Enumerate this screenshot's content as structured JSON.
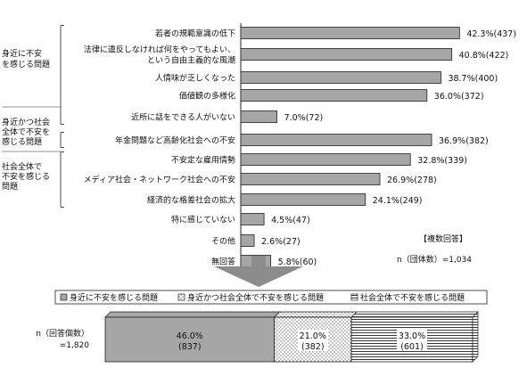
{
  "chart_data": [
    {
      "type": "bar",
      "orientation": "horizontal",
      "categories": [
        "若者の規範意識の低下",
        "法律に違反しなければ何をやってもよい、という自由主義的な風潮",
        "人情味が乏しくなった",
        "価値観の多様化",
        "近所に話をできる人がいない",
        "年金問題など高齢化社会への不安",
        "不安定な雇用情勢",
        "メディア社会・ネットワーク社会への不安",
        "経済的な格差社会の拡大",
        "特に感じていない",
        "その他",
        "無回答"
      ],
      "category_lines": [
        [
          "若者の規範意識の低下"
        ],
        [
          "法律に違反しなければ何をやってもよい、",
          "という自由主義的な風潮"
        ],
        [
          "人情味が乏しくなった"
        ],
        [
          "価値観の多様化"
        ],
        [
          "近所に話をできる人がいない"
        ],
        [
          "年金問題など高齢化社会への不安"
        ],
        [
          "不安定な雇用情勢"
        ],
        [
          "メディア社会・ネットワーク社会への不安"
        ],
        [
          "経済的な格差社会の拡大"
        ],
        [
          "特に感じていない"
        ],
        [
          "その他"
        ],
        [
          "無回答"
        ]
      ],
      "values": [
        42.3,
        40.8,
        38.7,
        36.0,
        7.0,
        36.9,
        32.8,
        26.9,
        24.1,
        4.5,
        2.6,
        5.8
      ],
      "counts": [
        437,
        422,
        400,
        372,
        72,
        382,
        339,
        278,
        249,
        47,
        27,
        60
      ],
      "value_labels": [
        "42.3%(437)",
        "40.8%(422)",
        "38.7%(400)",
        "36.0%(372)",
        "7.0%(72)",
        "36.9%(382)",
        "32.8%(339)",
        "26.9%(278)",
        "24.1%(249)",
        "4.5%(47)",
        "2.6%(27)",
        "5.8%(60)"
      ],
      "groups": [
        {
          "lines": [
            "身近に不安",
            "を感じる問題"
          ],
          "from": 0,
          "to": 4
        },
        {
          "lines": [
            "身近かつ社会",
            "全体で不安を",
            "感じる問題"
          ],
          "from": 5,
          "to": 5
        },
        {
          "lines": [
            "社会全体で",
            "不安を感じる",
            "問題"
          ],
          "from": 6,
          "to": 8
        }
      ],
      "notes": [
        "【複数回答】",
        "n（団体数）=1,034"
      ],
      "xlim": [
        0,
        45
      ],
      "bar_color": "#a6a6a6"
    },
    {
      "type": "bar",
      "orientation": "horizontal",
      "stacked": true,
      "legend": [
        {
          "label": "身近に不安を感じる問題",
          "pattern": "gray"
        },
        {
          "label": "身近かつ社会全体で不安を感じる問題",
          "pattern": "dots"
        },
        {
          "label": "社会全体で不安を感じる問題",
          "pattern": "lines"
        }
      ],
      "row_label_lines": [
        "n（回答個数）",
        "=1,820"
      ],
      "segments": [
        {
          "value": 46.0,
          "label": "46.0%",
          "count_label": "(837)",
          "pattern": "gray"
        },
        {
          "value": 21.0,
          "label": "21.0%",
          "count_label": "(382)",
          "pattern": "dots"
        },
        {
          "value": 33.0,
          "label": "33.0%",
          "count_label": "(601)",
          "pattern": "lines"
        }
      ],
      "xlim": [
        0,
        100
      ]
    }
  ]
}
